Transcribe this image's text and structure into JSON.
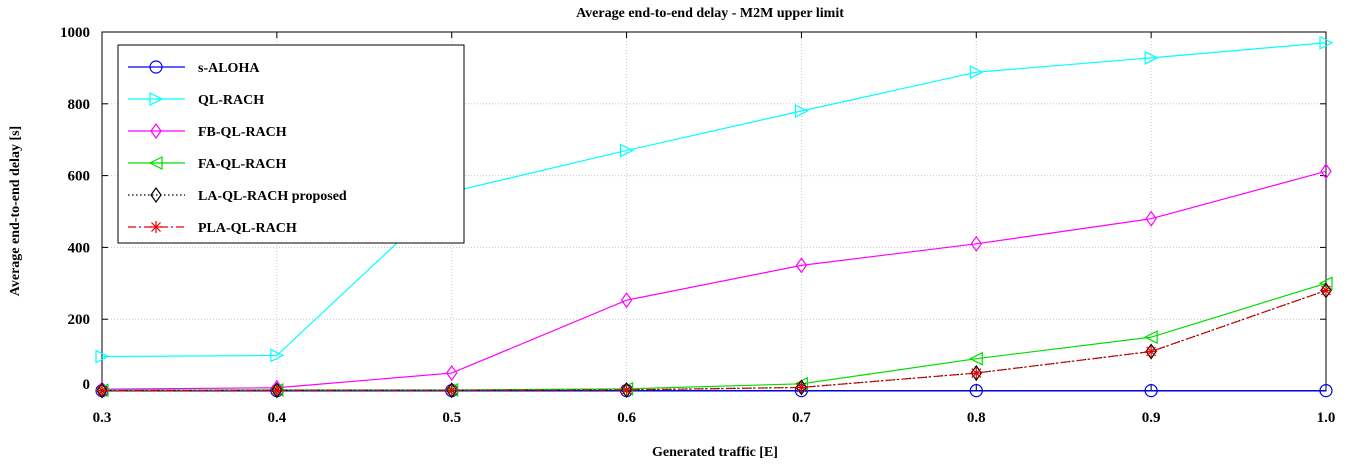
{
  "chart_data": {
    "type": "line",
    "title": "Average end-to-end delay - M2M upper limit",
    "xlabel": "Generated traffic [E]",
    "ylabel": "Average end-to-end delay [s]",
    "xlim": [
      0.3,
      1.0
    ],
    "ylim": [
      0,
      1000
    ],
    "x": [
      0.3,
      0.4,
      0.5,
      0.6,
      0.7,
      0.8,
      0.9,
      1.0
    ],
    "x_tick_labels": [
      "0.3",
      "0.4",
      "0.5",
      "0.6",
      "0.7",
      "0.8",
      "0.9",
      "1.0"
    ],
    "y_ticks": [
      0,
      200,
      400,
      600,
      800,
      1000
    ],
    "y_tick_labels": [
      "0",
      "200",
      "400",
      "600",
      "800",
      "1000"
    ],
    "grid": true,
    "legend_position": "top-left",
    "series": [
      {
        "name": "s-ALOHA",
        "color": "#0000ff",
        "marker": "circle",
        "dash": "solid",
        "values": [
          1,
          1,
          1,
          1,
          1,
          1,
          1,
          1
        ]
      },
      {
        "name": "QL-RACH",
        "color": "#00ffff",
        "marker": "triangle-right",
        "dash": "solid",
        "values": [
          96,
          99,
          555,
          670,
          780,
          888,
          928,
          970
        ]
      },
      {
        "name": "FB-QL-RACH",
        "color": "#ff00ff",
        "marker": "diamond",
        "dash": "solid",
        "values": [
          5,
          9,
          50,
          253,
          350,
          410,
          480,
          612
        ]
      },
      {
        "name": "FA-QL-RACH",
        "color": "#00dd00",
        "marker": "triangle-left",
        "dash": "solid",
        "values": [
          2,
          3,
          3,
          6,
          20,
          90,
          150,
          300
        ]
      },
      {
        "name": "LA-QL-RACH proposed",
        "color": "#000000",
        "marker": "diamond",
        "dash": "dotted",
        "values": [
          1,
          2,
          2,
          3,
          10,
          50,
          110,
          280
        ]
      },
      {
        "name": "PLA-QL-RACH",
        "color": "#e00000",
        "marker": "asterisk",
        "dash": "dashdot",
        "values": [
          1,
          2,
          2,
          3,
          10,
          50,
          110,
          280
        ]
      }
    ]
  }
}
